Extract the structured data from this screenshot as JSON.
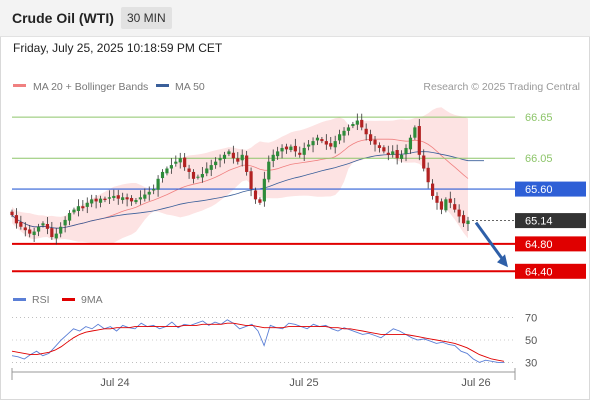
{
  "header": {
    "title": "Crude Oil (WTI)",
    "timeframe": "30 MIN"
  },
  "datetime": "Friday, July 25, 2025 10:18:59 PM CET",
  "legend": {
    "bollinger": "MA 20 + Bollinger Bands",
    "ma50": "MA 50",
    "copyright": "Research © 2025 Trading Central",
    "rsi": "RSI",
    "rsi_ma": "9MA"
  },
  "colors": {
    "bollinger": "#f08080",
    "ma50": "#3a5f9a",
    "resistance": "#8dc56a",
    "pivot": "#2e5fd6",
    "support": "#e00000",
    "current": "#333333",
    "rsi": "#5b7fd6",
    "rsi_ma": "#e00000",
    "up_candle": "#2e8b3a",
    "down_candle": "#b22222"
  },
  "chart_data": [
    {
      "type": "candlestick",
      "title": "Crude Oil (WTI) 30 MIN",
      "x_tick_labels": [
        "Jul 24",
        "Jul 25",
        "Jul 26"
      ],
      "ylim": [
        64.2,
        66.9
      ],
      "levels": [
        {
          "value": 66.65,
          "label": "66.65",
          "kind": "resistance"
        },
        {
          "value": 66.05,
          "label": "66.05",
          "kind": "resistance"
        },
        {
          "value": 65.6,
          "label": "65.60",
          "kind": "pivot"
        },
        {
          "value": 65.14,
          "label": "65.14",
          "kind": "current"
        },
        {
          "value": 64.8,
          "label": "64.80",
          "kind": "support"
        },
        {
          "value": 64.4,
          "label": "64.40",
          "kind": "support"
        }
      ],
      "forecast_arrow": {
        "from": 65.14,
        "to": 64.4
      },
      "close": [
        65.22,
        65.1,
        65.05,
        65.0,
        64.95,
        64.98,
        65.05,
        65.1,
        65.02,
        64.9,
        64.95,
        65.05,
        65.15,
        65.25,
        65.3,
        65.35,
        65.32,
        65.4,
        65.45,
        65.42,
        65.46,
        65.44,
        65.48,
        65.5,
        65.46,
        65.48,
        65.45,
        65.42,
        65.44,
        65.48,
        65.52,
        65.56,
        65.6,
        65.75,
        65.85,
        65.9,
        65.95,
        66.0,
        66.05,
        65.92,
        65.85,
        65.75,
        65.78,
        65.82,
        65.9,
        65.95,
        66.0,
        66.05,
        66.1,
        66.15,
        66.05,
        66.0,
        66.1,
        65.85,
        65.6,
        65.45,
        65.4,
        65.75,
        66.0,
        66.1,
        66.15,
        66.2,
        66.18,
        66.22,
        66.15,
        66.1,
        66.2,
        66.25,
        66.3,
        66.35,
        66.3,
        66.25,
        66.22,
        66.3,
        66.4,
        66.45,
        66.5,
        66.55,
        66.6,
        66.5,
        66.4,
        66.3,
        66.25,
        66.2,
        66.15,
        66.1,
        66.15,
        66.05,
        66.1,
        66.2,
        66.35,
        66.5,
        66.1,
        65.9,
        65.7,
        65.5,
        65.4,
        65.3,
        65.45,
        65.4,
        65.3,
        65.2,
        65.1,
        65.14
      ],
      "indicators": [
        "MA 20 + Bollinger Bands",
        "MA 50"
      ]
    },
    {
      "type": "line",
      "title": "RSI",
      "x_tick_labels": [
        "Jul 24",
        "Jul 25",
        "Jul 26"
      ],
      "ylim": [
        25,
        75
      ],
      "y_ticks": [
        70,
        50,
        30
      ],
      "series": [
        {
          "name": "RSI",
          "values": [
            36,
            35,
            33,
            37,
            40,
            36,
            38,
            44,
            50,
            55,
            60,
            58,
            62,
            60,
            64,
            60,
            62,
            58,
            63,
            61,
            60,
            65,
            62,
            63,
            60,
            62,
            66,
            61,
            64,
            63,
            65,
            67,
            63,
            66,
            64,
            68,
            65,
            60,
            62,
            64,
            58,
            45,
            63,
            61,
            60,
            65,
            64,
            62,
            60,
            64,
            62,
            63,
            60,
            58,
            61,
            59,
            57,
            55,
            56,
            54,
            52,
            56,
            60,
            58,
            55,
            52,
            50,
            51,
            49,
            47,
            48,
            46,
            45,
            40,
            38,
            33,
            30,
            32,
            31,
            30,
            30
          ]
        },
        {
          "name": "9MA",
          "values": [
            40,
            39,
            38,
            37,
            37,
            38,
            39,
            41,
            44,
            48,
            52,
            55,
            57,
            58,
            59,
            60,
            60,
            61,
            61,
            61,
            62,
            62,
            62,
            62,
            62,
            62,
            62,
            62,
            63,
            63,
            63,
            64,
            64,
            64,
            64,
            65,
            65,
            64,
            63,
            63,
            62,
            61,
            61,
            61,
            61,
            62,
            62,
            62,
            62,
            62,
            62,
            62,
            61,
            61,
            60,
            60,
            59,
            58,
            57,
            56,
            55,
            55,
            55,
            55,
            55,
            54,
            53,
            52,
            51,
            50,
            49,
            48,
            47,
            45,
            43,
            40,
            37,
            35,
            33,
            32,
            31
          ]
        }
      ]
    }
  ]
}
